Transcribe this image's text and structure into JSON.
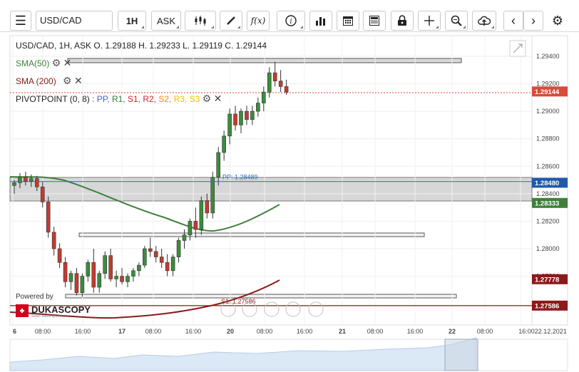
{
  "toolbar": {
    "symbol": "USD/CAD",
    "timeframe": "1H",
    "price_type": "ASK",
    "fx_label": "f(x)"
  },
  "header": {
    "ohlc": "USD/CAD, 1H, ASK   O. 1.29188 H. 1.29233 L. 1.29119 C. 1.29144"
  },
  "indicators": {
    "sma50": "SMA(50)",
    "sma200": "SMA (200)",
    "pivot_prefix": "PIVOTPOINT (0, 8)",
    "pivot_items": [
      {
        "label": ": PP,",
        "color": "#3a66c4"
      },
      {
        "label": "R1,",
        "color": "#2e7d32"
      },
      {
        "label": "S1,",
        "color": "#c62828"
      },
      {
        "label": "R2,",
        "color": "#c62828"
      },
      {
        "label": "S2,",
        "color": "#f08c00"
      },
      {
        "label": "R3,",
        "color": "#f0c000"
      },
      {
        "label": "S3",
        "color": "#f0c000"
      }
    ]
  },
  "chart_data": {
    "type": "candlestick",
    "symbol": "USD/CAD",
    "timeframe": "1H",
    "ylim": [
      1.2752,
      1.2946
    ],
    "y_ticks": [
      "1.29400",
      "1.29200",
      "1.29000",
      "1.28800",
      "1.28600",
      "1.28400",
      "1.28200",
      "1.28000",
      "1.27800"
    ],
    "x_ticks": [
      "6",
      "08:00",
      "16:00",
      "17",
      "08:00",
      "16:00",
      "20",
      "08:00",
      "16:00",
      "21",
      "08:00",
      "16:00",
      "22",
      "08:00",
      "16:0022.12.2021"
    ],
    "levels": [
      {
        "label": "PP: 1.28489",
        "value": 1.28489,
        "color": "#3a66c4"
      },
      {
        "label": "S1: 1.27586",
        "value": 1.27586,
        "color": "#8b1a1a"
      }
    ],
    "price_tags": [
      {
        "value": "1.29144",
        "color": "#d84a3a"
      },
      {
        "value": "1.28480",
        "color": "#1f5aa8"
      },
      {
        "value": "1.28333",
        "color": "#3f7f3a"
      },
      {
        "value": "1.27778",
        "color": "#8b1a1a"
      },
      {
        "value": "1.27586",
        "color": "#8b1a1a"
      }
    ],
    "candles": [
      [
        1.2846,
        1.285,
        1.284,
        1.2848
      ],
      [
        1.2848,
        1.2855,
        1.2844,
        1.2852
      ],
      [
        1.2852,
        1.2856,
        1.2846,
        1.2849
      ],
      [
        1.2849,
        1.2854,
        1.2845,
        1.2851
      ],
      [
        1.2851,
        1.2853,
        1.2842,
        1.2845
      ],
      [
        1.2845,
        1.2849,
        1.283,
        1.2834
      ],
      [
        1.2834,
        1.2838,
        1.2808,
        1.2812
      ],
      [
        1.2812,
        1.2816,
        1.2795,
        1.28
      ],
      [
        1.28,
        1.2804,
        1.2786,
        1.279
      ],
      [
        1.279,
        1.2794,
        1.2772,
        1.2776
      ],
      [
        1.2776,
        1.2784,
        1.277,
        1.2782
      ],
      [
        1.2782,
        1.2786,
        1.2766,
        1.2768
      ],
      [
        1.2768,
        1.2782,
        1.2765,
        1.278
      ],
      [
        1.278,
        1.2792,
        1.2776,
        1.279
      ],
      [
        1.279,
        1.28,
        1.2768,
        1.2772
      ],
      [
        1.2772,
        1.2784,
        1.2768,
        1.2782
      ],
      [
        1.2782,
        1.2798,
        1.2778,
        1.2795
      ],
      [
        1.2795,
        1.28,
        1.2776,
        1.2778
      ],
      [
        1.2778,
        1.2784,
        1.2772,
        1.278
      ],
      [
        1.278,
        1.2786,
        1.2774,
        1.2776
      ],
      [
        1.2776,
        1.2782,
        1.2772,
        1.278
      ],
      [
        1.278,
        1.2786,
        1.2776,
        1.2784
      ],
      [
        1.2784,
        1.279,
        1.278,
        1.2788
      ],
      [
        1.2788,
        1.2802,
        1.2786,
        1.28
      ],
      [
        1.28,
        1.2808,
        1.2794,
        1.2798
      ],
      [
        1.2798,
        1.2802,
        1.279,
        1.2794
      ],
      [
        1.2794,
        1.28,
        1.2786,
        1.279
      ],
      [
        1.279,
        1.2796,
        1.278,
        1.2784
      ],
      [
        1.2784,
        1.2796,
        1.278,
        1.2794
      ],
      [
        1.2794,
        1.2808,
        1.279,
        1.2806
      ],
      [
        1.2806,
        1.2814,
        1.28,
        1.281
      ],
      [
        1.281,
        1.2822,
        1.2806,
        1.282
      ],
      [
        1.282,
        1.283,
        1.2808,
        1.2814
      ],
      [
        1.2814,
        1.2838,
        1.281,
        1.2835
      ],
      [
        1.2835,
        1.284,
        1.2822,
        1.2826
      ],
      [
        1.2826,
        1.2856,
        1.2822,
        1.2852
      ],
      [
        1.2852,
        1.2874,
        1.2846,
        1.287
      ],
      [
        1.287,
        1.2886,
        1.2864,
        1.2882
      ],
      [
        1.2882,
        1.2902,
        1.2876,
        1.2898
      ],
      [
        1.2898,
        1.2904,
        1.2886,
        1.289
      ],
      [
        1.289,
        1.2902,
        1.2884,
        1.29
      ],
      [
        1.29,
        1.2904,
        1.289,
        1.2894
      ],
      [
        1.2894,
        1.2904,
        1.289,
        1.29
      ],
      [
        1.29,
        1.291,
        1.2896,
        1.2906
      ],
      [
        1.2906,
        1.2918,
        1.29,
        1.2914
      ],
      [
        1.2914,
        1.2932,
        1.291,
        1.2928
      ],
      [
        1.2928,
        1.2936,
        1.2918,
        1.2922
      ],
      [
        1.2922,
        1.293,
        1.2914,
        1.2918
      ],
      [
        1.2918,
        1.2923,
        1.2912,
        1.2914
      ]
    ]
  }
}
